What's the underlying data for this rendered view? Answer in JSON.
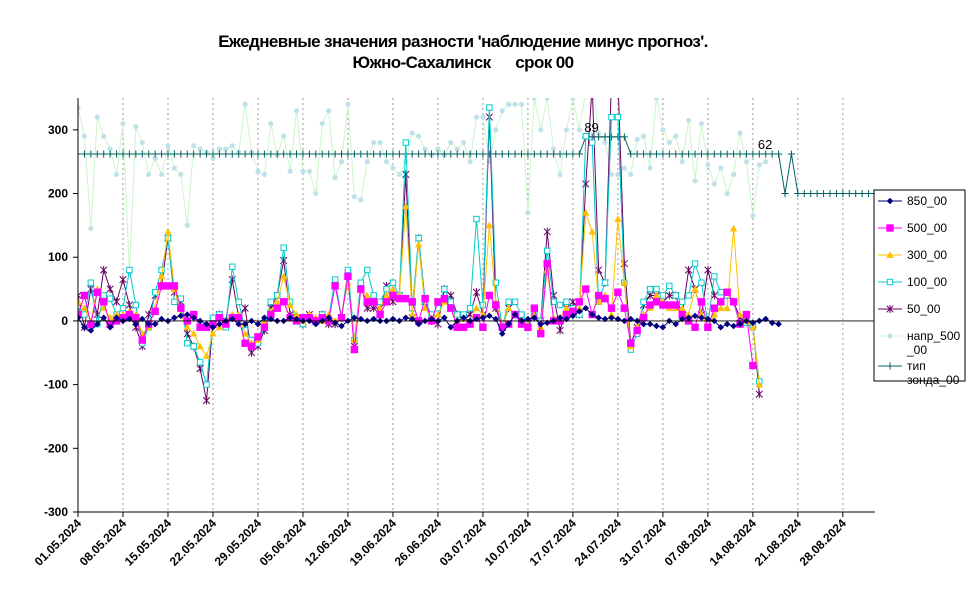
{
  "chart_data": {
    "type": "line",
    "title_line1": "Ежедневные значения разности 'наблюдение минус прогноз'.",
    "title_line2": "Южно-Сахалинск      срок 00",
    "ylim": [
      -300,
      350
    ],
    "yticks": [
      300,
      200,
      100,
      0,
      -100,
      -200,
      -300
    ],
    "ytick_labels": [
      "300",
      "200",
      "100",
      "0",
      "-100",
      "-200",
      "-300"
    ],
    "x_start": "2024-05-01",
    "xlim": [
      "2024-05-01",
      "2024-09-02"
    ],
    "xtick_labels": [
      "01.05.2024",
      "08.05.2024",
      "15.05.2024",
      "22.05.2024",
      "29.05.2024",
      "05.06.2024",
      "12.06.2024",
      "19.06.2024",
      "26.06.2024",
      "03.07.2024",
      "10.07.2024",
      "17.07.2024",
      "24.07.2024",
      "31.07.2024",
      "07.08.2024",
      "14.08.2024",
      "21.08.2024",
      "28.08.2024"
    ],
    "grid": {
      "vertical": true,
      "horizontal": false
    },
    "legend_position": "right",
    "annotations": [
      {
        "text": "89",
        "x": "2024-07-18",
        "y": 289
      },
      {
        "text": "62",
        "x": "2024-08-14",
        "y": 262
      }
    ],
    "series": [
      {
        "name": "850_00",
        "color": "#000080",
        "marker": "diamond",
        "line": true,
        "values": [
          5,
          -10,
          -15,
          -5,
          5,
          -10,
          5,
          0,
          3,
          -5,
          3,
          -5,
          -5,
          3,
          0,
          5,
          8,
          10,
          5,
          0,
          -5,
          -10,
          -5,
          0,
          3,
          -5,
          -5,
          0,
          -5,
          5,
          3,
          0,
          0,
          5,
          3,
          0,
          0,
          -5,
          0,
          5,
          -3,
          -8,
          0,
          5,
          3,
          0,
          3,
          0,
          0,
          3,
          0,
          5,
          3,
          -5,
          0,
          3,
          0,
          5,
          -10,
          0,
          5,
          0,
          3,
          5,
          8,
          3,
          -20,
          -5,
          10,
          0,
          3,
          5,
          -5,
          -3,
          0,
          5,
          3,
          8,
          15,
          20,
          10,
          5,
          3,
          5,
          3,
          0,
          3,
          0,
          -5,
          -5,
          -8,
          -10,
          0,
          -5,
          3,
          5,
          8,
          5,
          3,
          0,
          -10,
          -5,
          -8,
          -5,
          0,
          -3,
          0,
          3,
          -3,
          -5
        ]
      },
      {
        "name": "500_00",
        "color": "#FF00FF",
        "marker": "square",
        "line": true,
        "values": [
          10,
          40,
          -5,
          45,
          30,
          -5,
          0,
          5,
          10,
          5,
          -30,
          -5,
          15,
          55,
          55,
          55,
          20,
          0,
          10,
          -10,
          -10,
          -5,
          5,
          -5,
          5,
          5,
          -35,
          -40,
          -25,
          -10,
          10,
          20,
          30,
          5,
          0,
          5,
          5,
          0,
          5,
          0,
          55,
          5,
          70,
          -45,
          50,
          30,
          30,
          10,
          30,
          40,
          35,
          35,
          30,
          0,
          35,
          0,
          30,
          35,
          20,
          -10,
          -10,
          -5,
          5,
          -10,
          40,
          25,
          -10,
          -5,
          10,
          -5,
          -10,
          20,
          -20,
          90,
          0,
          0,
          10,
          15,
          30,
          50,
          10,
          40,
          35,
          20,
          45,
          20,
          -35,
          -15,
          5,
          25,
          30,
          25,
          25,
          25,
          10,
          0,
          -10,
          30,
          -10,
          20,
          30,
          45,
          30,
          -5,
          10,
          -70
        ]
      },
      {
        "name": "300_00",
        "color": "#FFC000",
        "marker": "triangle",
        "line": true,
        "values": [
          30,
          20,
          0,
          50,
          20,
          5,
          10,
          10,
          15,
          10,
          -20,
          -10,
          20,
          70,
          140,
          50,
          10,
          -10,
          -20,
          -40,
          -55,
          -20,
          -10,
          0,
          10,
          10,
          -20,
          -35,
          -30,
          0,
          15,
          30,
          70,
          25,
          10,
          0,
          10,
          5,
          0,
          10,
          0,
          10,
          60,
          -30,
          50,
          40,
          30,
          20,
          40,
          50,
          40,
          180,
          10,
          120,
          20,
          5,
          10,
          30,
          20,
          0,
          5,
          0,
          20,
          10,
          150,
          30,
          -10,
          20,
          10,
          0,
          -5,
          10,
          -10,
          80,
          5,
          5,
          20,
          10,
          20,
          170,
          140,
          30,
          40,
          10,
          160,
          60,
          -40,
          -10,
          10,
          20,
          40,
          30,
          20,
          20,
          20,
          10,
          50,
          10,
          -10,
          10,
          20,
          20,
          145,
          10,
          0,
          -10,
          -100
        ]
      },
      {
        "name": "100_00",
        "color": "#00CCCC",
        "marker": "square-open",
        "line": true,
        "values": [
          15,
          10,
          60,
          -5,
          40,
          35,
          10,
          20,
          80,
          25,
          -35,
          -10,
          45,
          80,
          130,
          30,
          35,
          -35,
          -40,
          -65,
          -100,
          5,
          10,
          -10,
          85,
          30,
          -15,
          -30,
          -35,
          -10,
          30,
          40,
          115,
          30,
          0,
          -5,
          5,
          0,
          10,
          5,
          65,
          5,
          80,
          -30,
          60,
          80,
          40,
          30,
          50,
          60,
          40,
          280,
          20,
          130,
          30,
          10,
          20,
          50,
          30,
          10,
          10,
          20,
          160,
          25,
          335,
          60,
          -10,
          30,
          30,
          10,
          -5,
          10,
          0,
          110,
          30,
          25,
          30,
          20,
          10,
          290,
          280,
          30,
          60,
          320,
          320,
          60,
          -45,
          -20,
          30,
          50,
          50,
          40,
          55,
          40,
          30,
          40,
          90,
          60,
          -5,
          70,
          45,
          40,
          30,
          -5,
          -3,
          -10,
          -95
        ]
      },
      {
        "name": "50_00",
        "color": "#660066",
        "marker": "x",
        "line": true,
        "values": [
          40,
          -10,
          50,
          10,
          80,
          50,
          30,
          65,
          25,
          -10,
          -40,
          10,
          40,
          55,
          130,
          45,
          30,
          -20,
          -40,
          -75,
          -125,
          0,
          10,
          0,
          65,
          5,
          20,
          -50,
          -40,
          -15,
          20,
          40,
          95,
          10,
          5,
          -5,
          10,
          0,
          10,
          -5,
          -5,
          5,
          75,
          -40,
          55,
          20,
          20,
          20,
          55,
          30,
          40,
          230,
          5,
          130,
          30,
          0,
          -5,
          50,
          40,
          10,
          5,
          10,
          45,
          10,
          320,
          20,
          -10,
          20,
          10,
          5,
          -10,
          10,
          0,
          140,
          40,
          -15,
          20,
          30,
          10,
          215,
          370,
          80,
          60,
          380,
          380,
          90,
          -35,
          -10,
          25,
          40,
          40,
          30,
          40,
          40,
          10,
          80,
          50,
          10,
          80,
          40,
          30,
          40,
          30,
          5,
          0,
          -5,
          -115
        ]
      },
      {
        "name": "напр_500_00",
        "color": "#BFE2EA",
        "marker": "circle",
        "line": true,
        "line_color": "#CCF5CC",
        "values": [
          335,
          290,
          145,
          320,
          290,
          270,
          230,
          310,
          75,
          305,
          280,
          230,
          255,
          230,
          275,
          240,
          230,
          150,
          275,
          270,
          265,
          255,
          270,
          270,
          275,
          265,
          340,
          265,
          235,
          230,
          310,
          260,
          290,
          235,
          330,
          235,
          235,
          200,
          310,
          330,
          225,
          250,
          340,
          195,
          190,
          250,
          280,
          280,
          250,
          240,
          230,
          250,
          295,
          290,
          270,
          260,
          270,
          260,
          280,
          270,
          280,
          250,
          320,
          320,
          250,
          300,
          330,
          340,
          340,
          340,
          170,
          350,
          300,
          350,
          270,
          230,
          300,
          350,
          300,
          360,
          380,
          295,
          280,
          230,
          230,
          240,
          230,
          285,
          290,
          240,
          350,
          300,
          280,
          290,
          250,
          315,
          220,
          310,
          245,
          215,
          240,
          200,
          230,
          295,
          250,
          165,
          245,
          250,
          0,
          0,
          0,
          0
        ]
      },
      {
        "name": "тип зонда_00",
        "color": "#006060",
        "marker": "plus",
        "line": true,
        "values": [
          262,
          262,
          262,
          262,
          262,
          262,
          262,
          262,
          262,
          262,
          262,
          262,
          262,
          262,
          262,
          262,
          262,
          262,
          262,
          262,
          262,
          262,
          262,
          262,
          262,
          262,
          262,
          262,
          262,
          262,
          262,
          262,
          262,
          262,
          262,
          262,
          262,
          262,
          262,
          262,
          262,
          262,
          262,
          262,
          262,
          262,
          262,
          262,
          262,
          262,
          262,
          262,
          262,
          262,
          262,
          262,
          262,
          262,
          262,
          262,
          262,
          262,
          262,
          262,
          262,
          262,
          262,
          262,
          262,
          262,
          262,
          262,
          262,
          262,
          262,
          262,
          262,
          262,
          262,
          289,
          289,
          289,
          289,
          289,
          289,
          289,
          262,
          262,
          262,
          262,
          262,
          262,
          262,
          262,
          262,
          262,
          262,
          262,
          262,
          262,
          262,
          262,
          262,
          262,
          262,
          262,
          262,
          262,
          262,
          262,
          200,
          262,
          200,
          200,
          200,
          200,
          200,
          200,
          200,
          200,
          200,
          200,
          200,
          200,
          200,
          200,
          200,
          200,
          200,
          200,
          200,
          200,
          200,
          200,
          200
        ]
      }
    ]
  }
}
